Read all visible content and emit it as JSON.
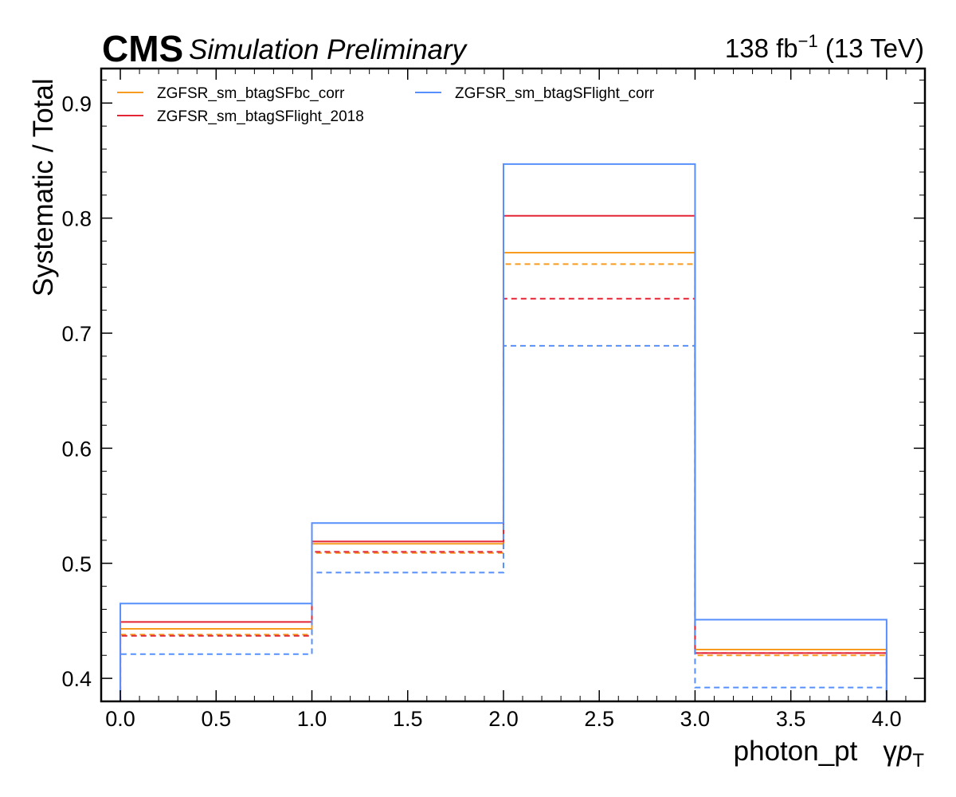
{
  "header": {
    "cms_label": "CMS",
    "status_label": "Simulation Preliminary",
    "lumi_value": "138 fb",
    "lumi_exponent": "−1",
    "energy_label": " (13 TeV)"
  },
  "chart_data": {
    "type": "step",
    "xlabel_text": "photon_pt",
    "xlabel_symbol": "γ",
    "xlabel_var": "p",
    "xlabel_sub": "T",
    "ylabel": "Systematic / Total",
    "xlim": [
      -0.1,
      4.2
    ],
    "ylim": [
      0.38,
      0.93
    ],
    "grid": false,
    "legend_placement": "top-left",
    "legend_columns": 2,
    "bin_edges": [
      0,
      1,
      2,
      3,
      4
    ],
    "x_ticks": [
      "0.0",
      "0.5",
      "1.0",
      "1.5",
      "2.0",
      "2.5",
      "3.0",
      "3.5",
      "4.0"
    ],
    "y_ticks": [
      "0.4",
      "0.5",
      "0.6",
      "0.7",
      "0.8",
      "0.9"
    ],
    "series": [
      {
        "name": "ZGFSR_sm_btagSFbc_corr",
        "color": "#f89c20",
        "up": [
          0.443,
          0.517,
          0.77,
          0.425
        ],
        "down": [
          0.438,
          0.509,
          0.76,
          0.42
        ]
      },
      {
        "name": "ZGFSR_sm_btagSFlight_2018",
        "color": "#e42536",
        "up": [
          0.449,
          0.519,
          0.802,
          0.422
        ],
        "down": [
          0.437,
          0.51,
          0.73,
          0.422
        ]
      },
      {
        "name": "ZGFSR_sm_btagSFlight_corr",
        "color": "#5790fc",
        "up": [
          0.465,
          0.535,
          0.847,
          0.451
        ],
        "down": [
          0.421,
          0.492,
          0.689,
          0.392
        ]
      }
    ]
  }
}
